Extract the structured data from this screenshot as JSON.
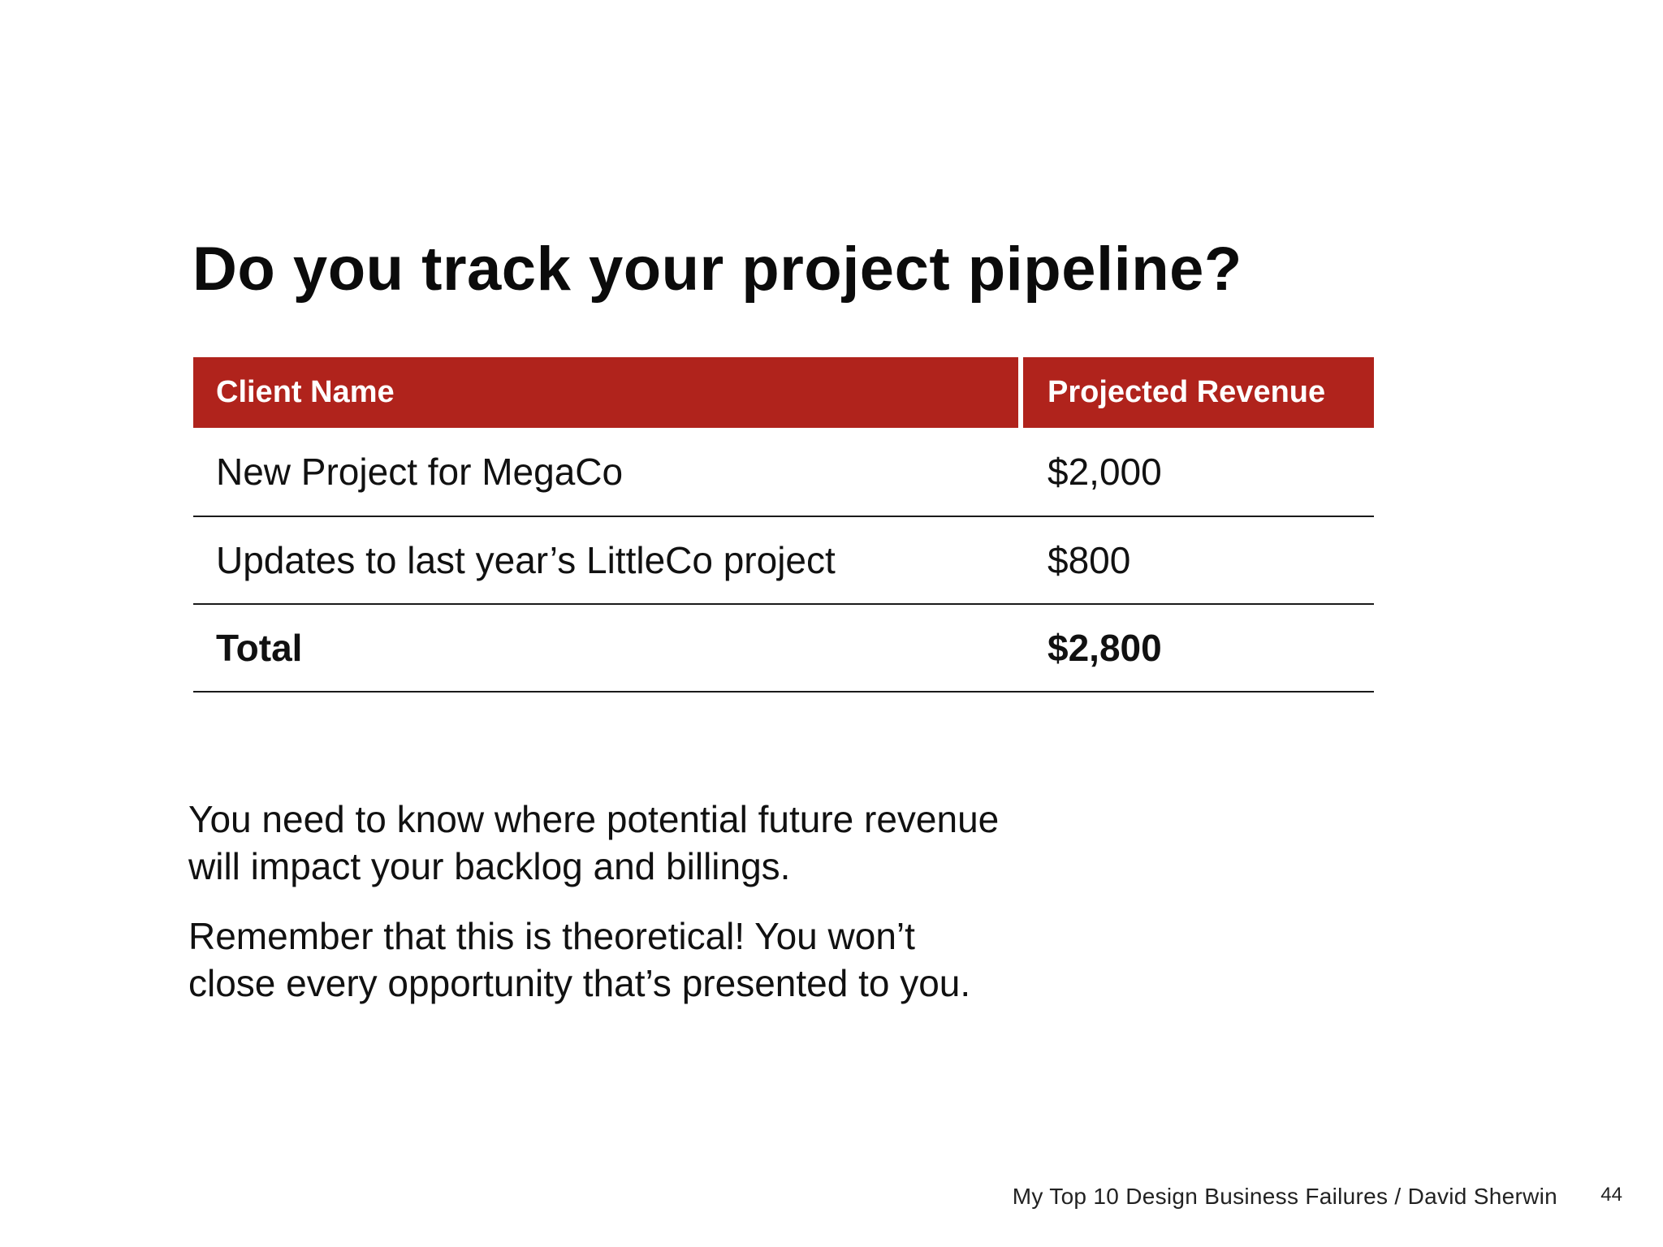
{
  "slide": {
    "title": "Do you track your project pipeline?",
    "table": {
      "headers": [
        "Client Name",
        "Projected Revenue"
      ],
      "rows": [
        {
          "client": "New Project for MegaCo",
          "revenue": "$2,000"
        },
        {
          "client": "Updates to last year’s LittleCo project",
          "revenue": "$800"
        }
      ],
      "total": {
        "label": "Total",
        "revenue": "$2,800"
      }
    },
    "paragraphs": [
      "You need to know where potential future revenue will impact your backlog and billings.",
      "Remember that this is theoretical! You won’t close every opportunity that’s presented to you."
    ],
    "paragraph_lines": [
      [
        "You need to know where potential future revenue",
        "will impact your backlog and billings."
      ],
      [
        "Remember that this is theoretical! You won’t",
        "close every opportunity that’s presented to you."
      ]
    ],
    "footer": "My Top 10 Design Business Failures / David Sherwin",
    "page_number": "44"
  },
  "colors": {
    "accent": "#b0231c",
    "text": "#111111",
    "background": "#ffffff"
  }
}
